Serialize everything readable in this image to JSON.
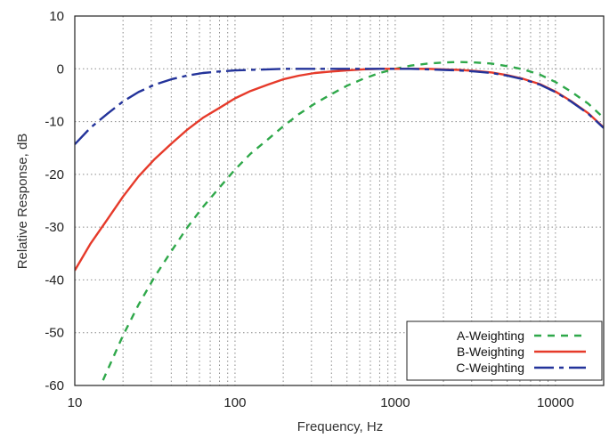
{
  "chart_data": {
    "type": "line",
    "xscale": "log",
    "xlim": [
      10,
      20000
    ],
    "ylim": [
      -60,
      10
    ],
    "xlabel": "Frequency, Hz",
    "ylabel": "Relative Response, dB",
    "xticks": [
      10,
      100,
      1000,
      10000
    ],
    "xtick_labels": [
      "10",
      "100",
      "1000",
      "10000"
    ],
    "yticks": [
      10,
      0,
      -10,
      -20,
      -30,
      -40,
      -50,
      -60
    ],
    "ytick_labels": [
      "10",
      "0",
      "-10",
      "-20",
      "-30",
      "-40",
      "-50",
      "-60"
    ],
    "grid": true,
    "legend": "bottom-right",
    "series": [
      {
        "name": "A-Weighting",
        "color": "#2fa84a",
        "dash": "dashed",
        "x": [
          15,
          20,
          25,
          31.5,
          40,
          50,
          63,
          80,
          100,
          125,
          160,
          200,
          250,
          315,
          400,
          500,
          630,
          800,
          1000,
          1250,
          1600,
          2000,
          2500,
          3150,
          4000,
          5000,
          6300,
          8000,
          10000,
          12500,
          16000,
          20000
        ],
        "y": [
          -59,
          -50.5,
          -44.7,
          -39.4,
          -34.6,
          -30.2,
          -26.2,
          -22.5,
          -19.1,
          -16.1,
          -13.4,
          -10.9,
          -8.6,
          -6.6,
          -4.8,
          -3.2,
          -1.9,
          -0.8,
          0,
          0.6,
          1,
          1.2,
          1.3,
          1.2,
          1,
          0.5,
          -0.1,
          -1.1,
          -2.5,
          -4.3,
          -6.6,
          -9.3
        ]
      },
      {
        "name": "B-Weighting",
        "color": "#e63a2a",
        "dash": "solid",
        "x": [
          10,
          12.5,
          16,
          20,
          25,
          31.5,
          40,
          50,
          63,
          80,
          100,
          125,
          160,
          200,
          250,
          315,
          400,
          500,
          630,
          800,
          1000,
          1250,
          1600,
          2000,
          2500,
          3150,
          4000,
          5000,
          6300,
          8000,
          10000,
          12500,
          16000,
          20000
        ],
        "y": [
          -38.2,
          -33.2,
          -28.5,
          -24.2,
          -20.4,
          -17.1,
          -14.2,
          -11.6,
          -9.3,
          -7.4,
          -5.6,
          -4.2,
          -3,
          -2,
          -1.3,
          -0.8,
          -0.5,
          -0.3,
          -0.1,
          0,
          0,
          0,
          0,
          -0.1,
          -0.2,
          -0.4,
          -0.7,
          -1.2,
          -1.9,
          -2.9,
          -4.3,
          -6.1,
          -8.4,
          -11.1
        ]
      },
      {
        "name": "C-Weighting",
        "color": "#23339a",
        "dash": "longdash",
        "x": [
          10,
          12.5,
          16,
          20,
          25,
          31.5,
          40,
          50,
          63,
          80,
          100,
          125,
          160,
          200,
          250,
          315,
          400,
          500,
          630,
          800,
          1000,
          1250,
          1600,
          2000,
          2500,
          3150,
          4000,
          5000,
          6300,
          8000,
          10000,
          12500,
          16000,
          20000
        ],
        "y": [
          -14.3,
          -11.2,
          -8.5,
          -6.2,
          -4.4,
          -3,
          -2,
          -1.3,
          -0.8,
          -0.5,
          -0.3,
          -0.2,
          -0.1,
          0,
          0,
          0,
          0,
          0,
          0,
          0,
          0,
          0,
          -0.1,
          -0.2,
          -0.3,
          -0.5,
          -0.8,
          -1.3,
          -2,
          -3,
          -4.4,
          -6.2,
          -8.5,
          -11.2
        ]
      }
    ]
  }
}
